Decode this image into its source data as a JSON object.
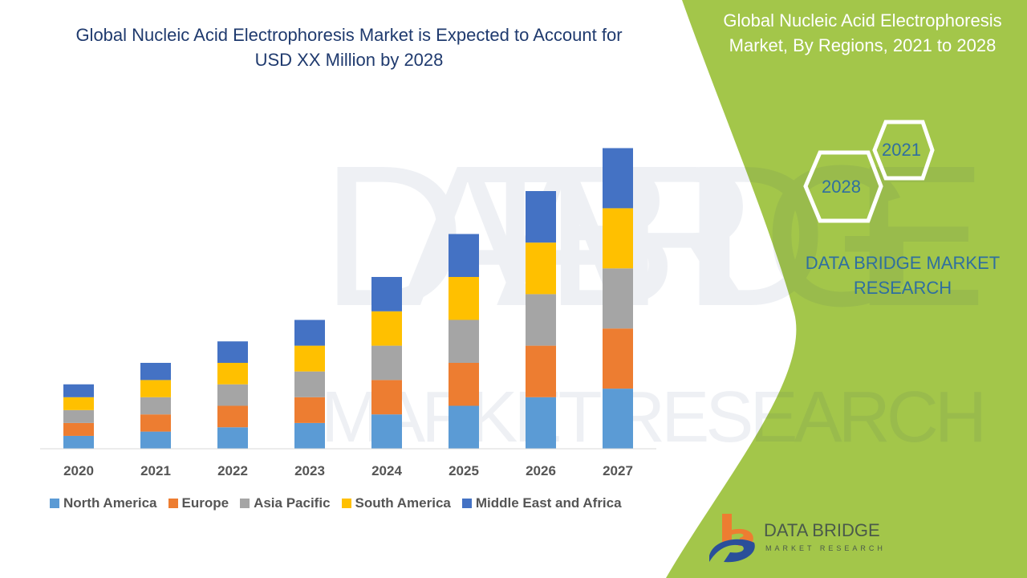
{
  "title": "Global Nucleic Acid Electrophoresis Market is Expected to Account for USD XX Million by 2028",
  "side_panel": {
    "title": "Global Nucleic Acid Electrophoresis Market, By Regions, 2021 to 2028",
    "hex_years": [
      "2021",
      "2028"
    ],
    "brand": "DATA BRIDGE MARKET RESEARCH"
  },
  "logo": {
    "name": "DATA BRIDGE",
    "tagline": "MARKET RESEARCH"
  },
  "colors": {
    "green_panel": "#a3c64a",
    "title": "#1f3a6e"
  },
  "chart_data": {
    "type": "bar",
    "stacked": true,
    "categories": [
      "2020",
      "2021",
      "2022",
      "2023",
      "2024",
      "2025",
      "2026",
      "2027"
    ],
    "series": [
      {
        "name": "North America",
        "color": "#5b9bd5",
        "values": [
          1.5,
          2.0,
          2.5,
          3.0,
          4.0,
          5.0,
          6.0,
          7.0
        ]
      },
      {
        "name": "Europe",
        "color": "#ed7d31",
        "values": [
          1.5,
          2.0,
          2.5,
          3.0,
          4.0,
          5.0,
          6.0,
          7.0
        ]
      },
      {
        "name": "Asia Pacific",
        "color": "#a5a5a5",
        "values": [
          1.5,
          2.0,
          2.5,
          3.0,
          4.0,
          5.0,
          6.0,
          7.0
        ]
      },
      {
        "name": "South America",
        "color": "#ffc000",
        "values": [
          1.5,
          2.0,
          2.5,
          3.0,
          4.0,
          5.0,
          6.0,
          7.0
        ]
      },
      {
        "name": "Middle East and Africa",
        "color": "#4472c4",
        "values": [
          1.5,
          2.0,
          2.5,
          3.0,
          4.0,
          5.0,
          6.0,
          7.0
        ]
      }
    ],
    "y_axis_shown": false,
    "grid": false,
    "legend": "bottom"
  }
}
